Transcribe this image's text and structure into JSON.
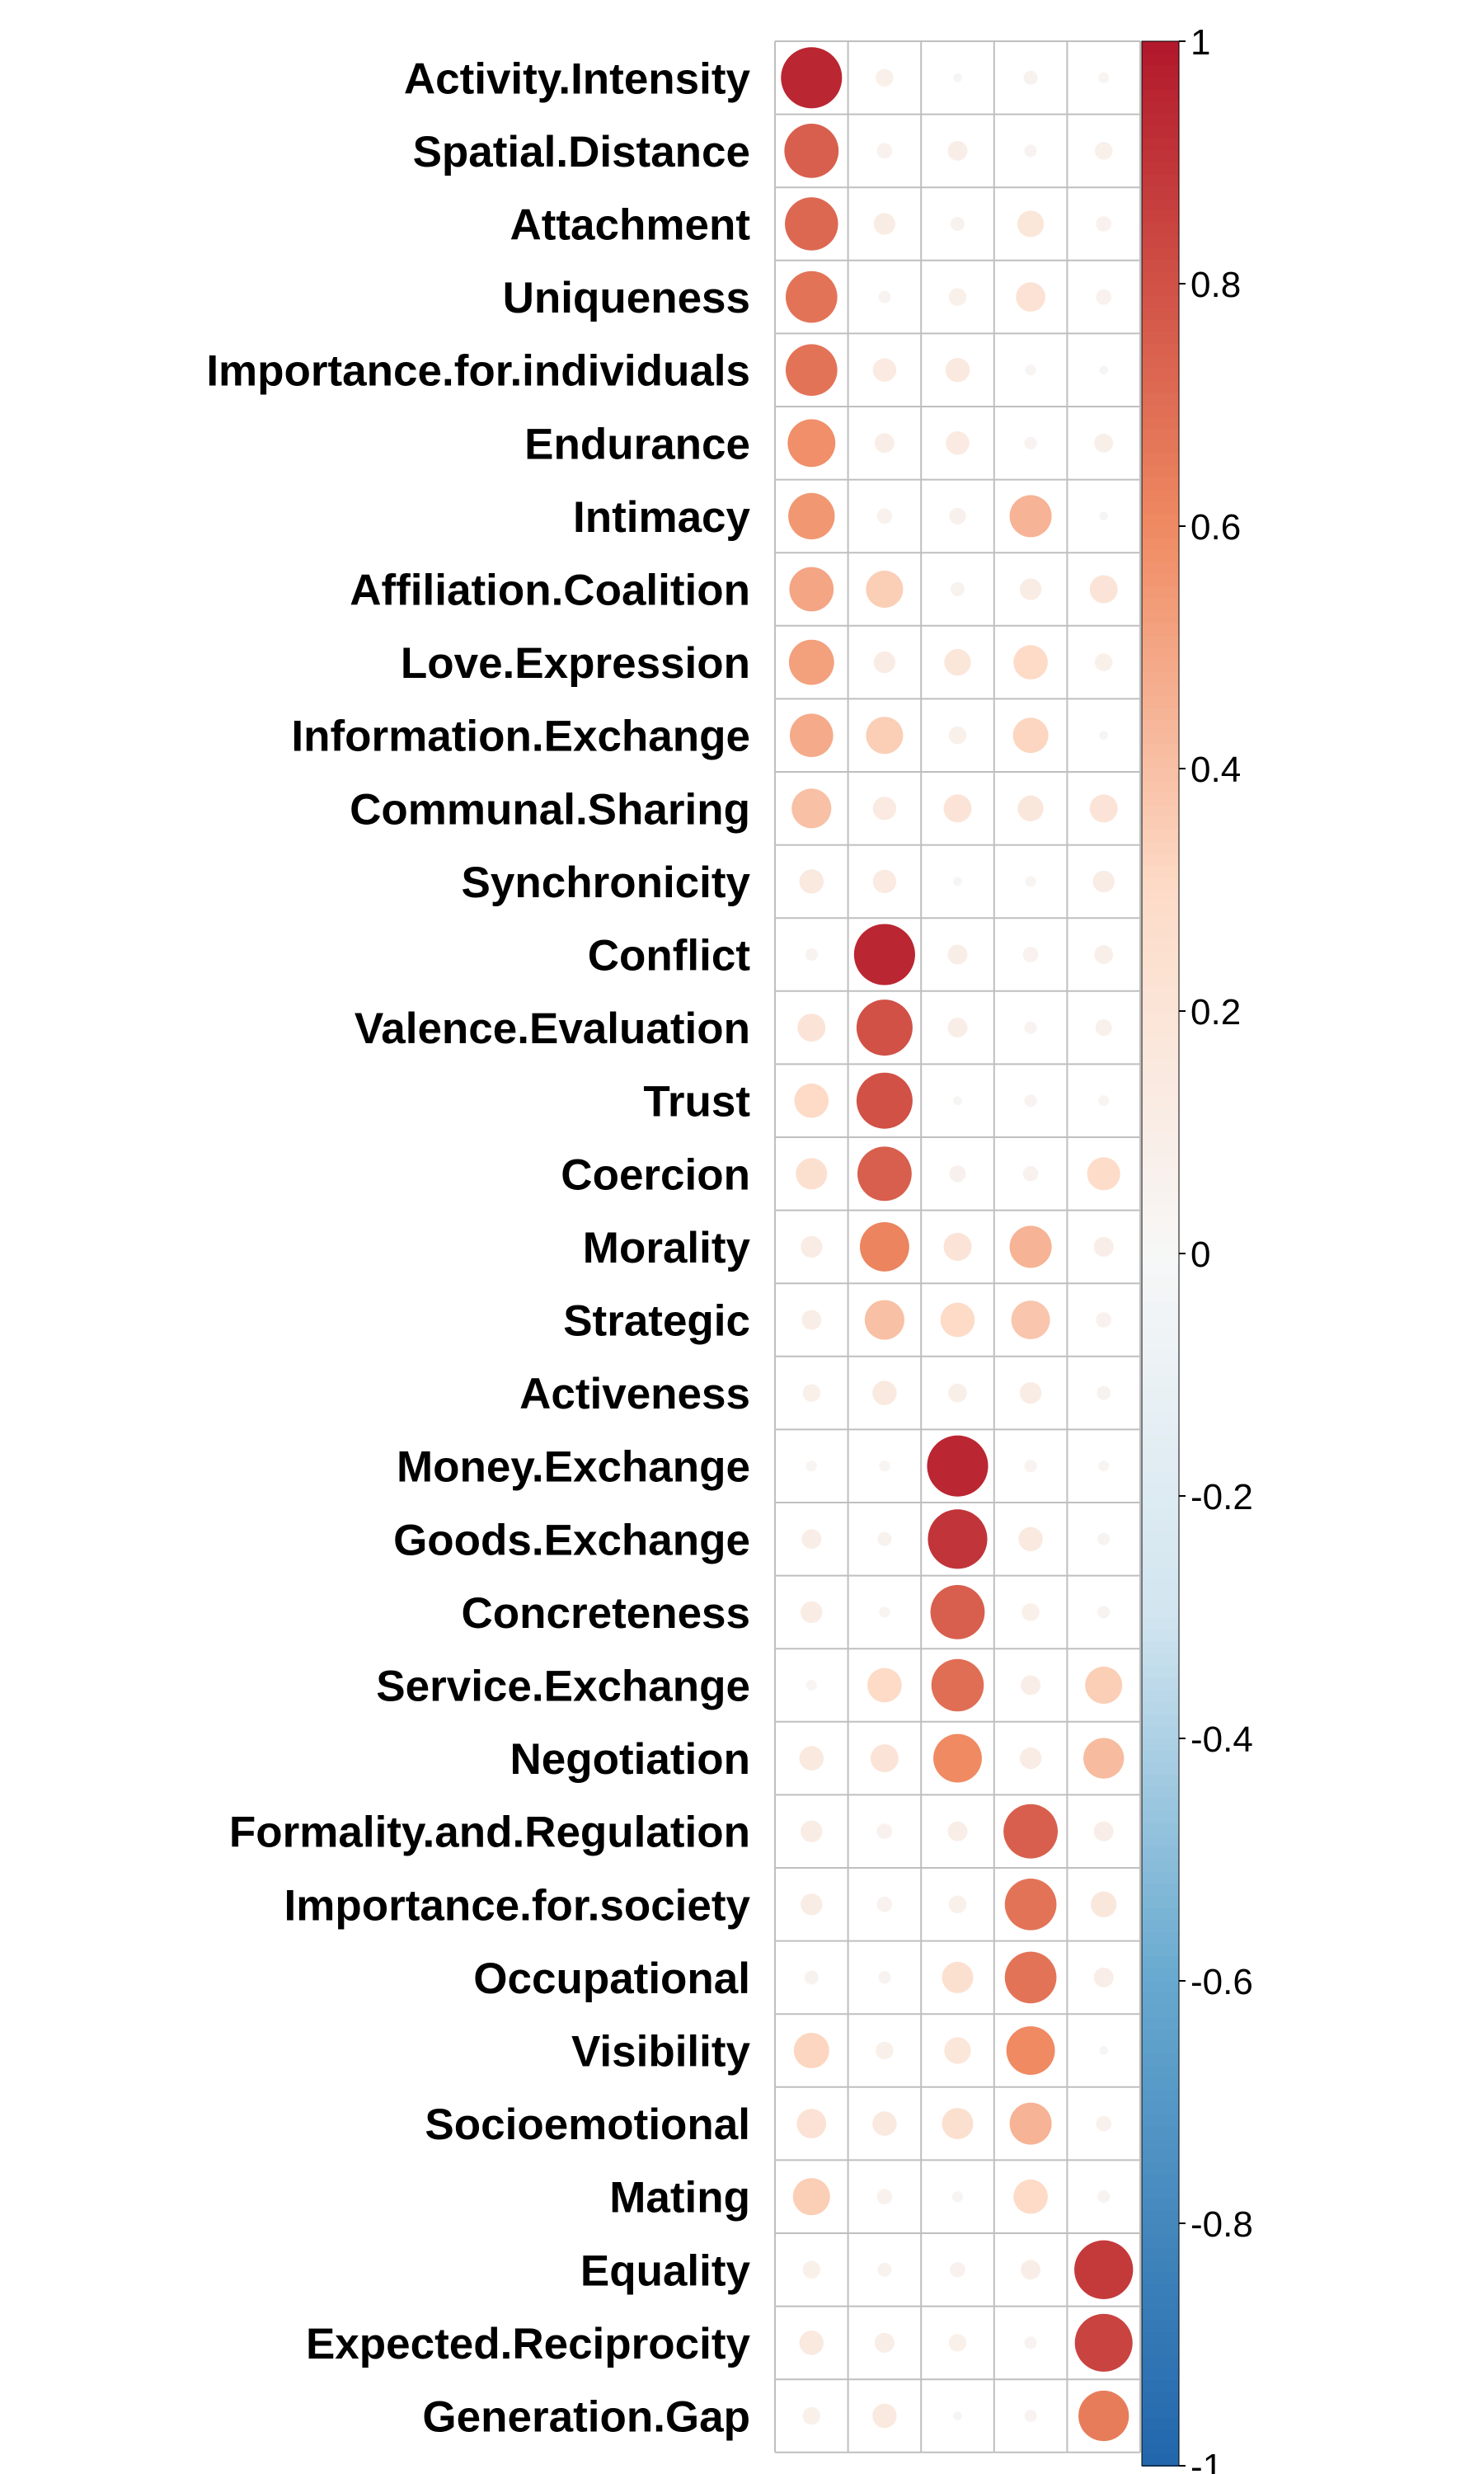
{
  "chart_data": {
    "type": "heatmap",
    "subtype": "correlation-circles",
    "title": "",
    "xlabel": "",
    "ylabel": "",
    "columns": 5,
    "rows": [
      {
        "label": "Activity.Intensity",
        "values": [
          0.95,
          0.08,
          0.02,
          0.05,
          0.03
        ]
      },
      {
        "label": "Spatial.Distance",
        "values": [
          0.75,
          0.06,
          0.1,
          0.04,
          0.08
        ]
      },
      {
        "label": "Attachment",
        "values": [
          0.72,
          0.12,
          0.05,
          0.18,
          0.06
        ]
      },
      {
        "label": "Uniqueness",
        "values": [
          0.68,
          0.04,
          0.08,
          0.22,
          0.06
        ]
      },
      {
        "label": "Importance.for.individuals",
        "values": [
          0.68,
          0.14,
          0.15,
          0.03,
          0.02
        ]
      },
      {
        "label": "Endurance",
        "values": [
          0.58,
          0.1,
          0.14,
          0.04,
          0.09
        ]
      },
      {
        "label": "Intimacy",
        "values": [
          0.55,
          0.06,
          0.07,
          0.45,
          0.02
        ]
      },
      {
        "label": "Affiliation.Coalition",
        "values": [
          0.5,
          0.35,
          0.05,
          0.12,
          0.2
        ]
      },
      {
        "label": "Love.Expression",
        "values": [
          0.52,
          0.12,
          0.18,
          0.3,
          0.08
        ]
      },
      {
        "label": "Information.Exchange",
        "values": [
          0.48,
          0.35,
          0.08,
          0.32,
          0.02
        ]
      },
      {
        "label": "Communal.Sharing",
        "values": [
          0.4,
          0.14,
          0.2,
          0.17,
          0.2
        ]
      },
      {
        "label": "Synchronicity",
        "values": [
          0.15,
          0.14,
          0.02,
          0.03,
          0.12
        ]
      },
      {
        "label": "Conflict",
        "values": [
          0.04,
          0.95,
          0.1,
          0.06,
          0.09
        ]
      },
      {
        "label": "Valence.Evaluation",
        "values": [
          0.2,
          0.8,
          0.1,
          0.04,
          0.07
        ]
      },
      {
        "label": "Trust",
        "values": [
          0.3,
          0.8,
          0.02,
          0.04,
          0.03
        ]
      },
      {
        "label": "Coercion",
        "values": [
          0.25,
          0.75,
          0.07,
          0.06,
          0.28
        ]
      },
      {
        "label": "Morality",
        "values": [
          0.12,
          0.62,
          0.2,
          0.45,
          0.1
        ]
      },
      {
        "label": "Strategic",
        "values": [
          0.1,
          0.4,
          0.3,
          0.38,
          0.06
        ]
      },
      {
        "label": "Activeness",
        "values": [
          0.08,
          0.15,
          0.09,
          0.12,
          0.05
        ]
      },
      {
        "label": "Money.Exchange",
        "values": [
          0.03,
          0.03,
          0.95,
          0.04,
          0.03
        ]
      },
      {
        "label": "Goods.Exchange",
        "values": [
          0.1,
          0.05,
          0.9,
          0.15,
          0.04
        ]
      },
      {
        "label": "Concreteness",
        "values": [
          0.12,
          0.03,
          0.75,
          0.08,
          0.04
        ]
      },
      {
        "label": "Service.Exchange",
        "values": [
          0.03,
          0.3,
          0.7,
          0.1,
          0.35
        ]
      },
      {
        "label": "Negotiation",
        "values": [
          0.15,
          0.2,
          0.6,
          0.12,
          0.42
        ]
      },
      {
        "label": "Formality.and.Regulation",
        "values": [
          0.12,
          0.06,
          0.1,
          0.75,
          0.1
        ]
      },
      {
        "label": "Importance.for.society",
        "values": [
          0.12,
          0.06,
          0.08,
          0.68,
          0.17
        ]
      },
      {
        "label": "Occupational",
        "values": [
          0.05,
          0.04,
          0.25,
          0.68,
          0.1
        ]
      },
      {
        "label": "Visibility",
        "values": [
          0.32,
          0.08,
          0.18,
          0.6,
          0.02
        ]
      },
      {
        "label": "Socioemotional",
        "values": [
          0.22,
          0.15,
          0.25,
          0.45,
          0.06
        ]
      },
      {
        "label": "Mating",
        "values": [
          0.35,
          0.06,
          0.03,
          0.3,
          0.04
        ]
      },
      {
        "label": "Equality",
        "values": [
          0.08,
          0.05,
          0.06,
          0.1,
          0.88
        ]
      },
      {
        "label": "Expected.Reciprocity",
        "values": [
          0.15,
          0.1,
          0.08,
          0.04,
          0.85
        ]
      },
      {
        "label": "Generation.Gap",
        "values": [
          0.08,
          0.15,
          0.02,
          0.04,
          0.65
        ]
      }
    ],
    "colorbar": {
      "range": [
        -1,
        1
      ],
      "ticks": [
        "1",
        "0.8",
        "0.6",
        "0.4",
        "0.2",
        "0",
        "-0.2",
        "-0.4",
        "-0.6",
        "-0.8",
        "-1"
      ]
    },
    "colors": {
      "neg_end": "#2166ac",
      "neg_mid": "#67a9cf",
      "neg_light": "#d1e5f0",
      "zero": "#f7f7f7",
      "pos_light": "#fddbc7",
      "pos_mid": "#ef8a62",
      "pos_end": "#b2182b",
      "grid": "#bfbfbf"
    },
    "grid": true,
    "legend": "right colorbar"
  }
}
